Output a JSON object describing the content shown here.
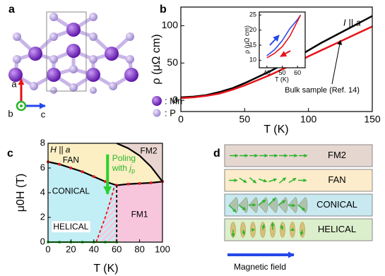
{
  "panel_labels": [
    "a",
    "b",
    "c",
    "d"
  ],
  "panel_a": {
    "axes": [
      "a",
      "b",
      "c"
    ],
    "legend": [
      ": Mn",
      ": P"
    ]
  },
  "chart_data": [
    {
      "type": "line",
      "annotation": "I || a",
      "xlabel": "T (K)",
      "ylabel": "ρ (μΩ cm)",
      "x": [
        0,
        10,
        20,
        30,
        40,
        50,
        60,
        70,
        80,
        90,
        100,
        110,
        120,
        130,
        140,
        150
      ],
      "xlim": [
        0,
        150
      ],
      "xticks": [
        0,
        50,
        100,
        150
      ],
      "ylim": [
        -15,
        125
      ],
      "yticks": [
        0,
        50,
        100
      ],
      "series": [
        {
          "name": "Bulk sample (Ref. 14)",
          "color": "#000000",
          "values": [
            4,
            5,
            7,
            11,
            16,
            23,
            31,
            39,
            48,
            57,
            67,
            77,
            86,
            95,
            104,
            113
          ]
        },
        {
          "color": "#e8141b",
          "values": [
            3,
            4,
            6,
            9,
            14,
            20,
            27,
            34,
            42,
            50,
            59,
            67,
            75,
            83,
            91,
            99
          ]
        }
      ]
    },
    {
      "type": "line",
      "inset": true,
      "xlabel": "T (K)",
      "ylabel": "ρ (μΩ cm)",
      "x": [
        40,
        45,
        50,
        55,
        60,
        62
      ],
      "xlim": [
        35,
        65
      ],
      "xticks": [
        40,
        50,
        60
      ],
      "ylim": [
        7.5,
        26
      ],
      "yticks": [
        10,
        15,
        20,
        25
      ],
      "series": [
        {
          "color": "#3050e0",
          "values": [
            11.5,
            13.5,
            16.5,
            20.5,
            23.5,
            25
          ]
        },
        {
          "color": "#e8141b",
          "values": [
            10.8,
            12.3,
            14.5,
            18,
            23,
            25
          ]
        }
      ]
    },
    {
      "type": "phase",
      "field_label": "H || a",
      "xlabel": "T (K)",
      "ylabel": "μ0H (T)",
      "xlim": [
        0,
        100
      ],
      "xticks": [
        0,
        20,
        40,
        60,
        80,
        100
      ],
      "ylim": [
        0,
        8
      ],
      "yticks": [
        0,
        2,
        4,
        6,
        8
      ],
      "regions": [
        {
          "name": "FM2",
          "color": "#e8d5cf"
        },
        {
          "name": "FAN",
          "color": "#fcefc4"
        },
        {
          "name": "CONICAL",
          "color": "#c2eef6"
        },
        {
          "name": "FM1",
          "color": "#f7c6dc"
        },
        {
          "name": "HELICAL",
          "color": "#c2eef6",
          "stripe_color": "#f7c6dc"
        }
      ],
      "boundaries": [
        {
          "x": [
            0,
            10,
            20,
            30,
            40,
            50,
            60,
            70,
            80,
            90,
            100
          ],
          "y": [
            6.5,
            6.3,
            6.0,
            5.7,
            5.3,
            4.9,
            4.6,
            4.7,
            4.75,
            4.8,
            4.9
          ],
          "color": "#000000",
          "dash": false,
          "marker_color": "#e8141b"
        },
        {
          "x": [
            60,
            70,
            80,
            90,
            100
          ],
          "y": [
            8,
            7.6,
            7.0,
            6.1,
            4.9
          ],
          "color": "#000000",
          "dash": false
        },
        {
          "x": [
            42,
            46,
            50,
            54,
            58
          ],
          "y": [
            0,
            1,
            2,
            3.2,
            4.5
          ],
          "color": "#e8141b",
          "dash": true
        },
        {
          "x": [
            60,
            60
          ],
          "y": [
            0,
            4.6
          ],
          "color": "#000000",
          "dash": true
        },
        {
          "x": [
            0,
            10,
            20,
            30,
            40,
            50,
            60
          ],
          "y": [
            0,
            0,
            0,
            0,
            0,
            0,
            0
          ],
          "color": "#2bb52b",
          "dash": false,
          "marker_color": "#2bb52b"
        }
      ],
      "annotation": {
        "lines": [
          "Poling",
          "with "
        ],
        "symbol": "j",
        "subscript": "p",
        "color": "#2bb52b"
      }
    }
  ],
  "panel_d": {
    "rows": [
      {
        "label": "FM2",
        "color": "#e6d6d0"
      },
      {
        "label": "FAN",
        "color": "#fdeccb"
      },
      {
        "label": "CONICAL",
        "color": "#c8e9ef"
      },
      {
        "label": "HELICAL",
        "color": "#dcefcc"
      }
    ],
    "axis_label": "Magnetic field"
  }
}
